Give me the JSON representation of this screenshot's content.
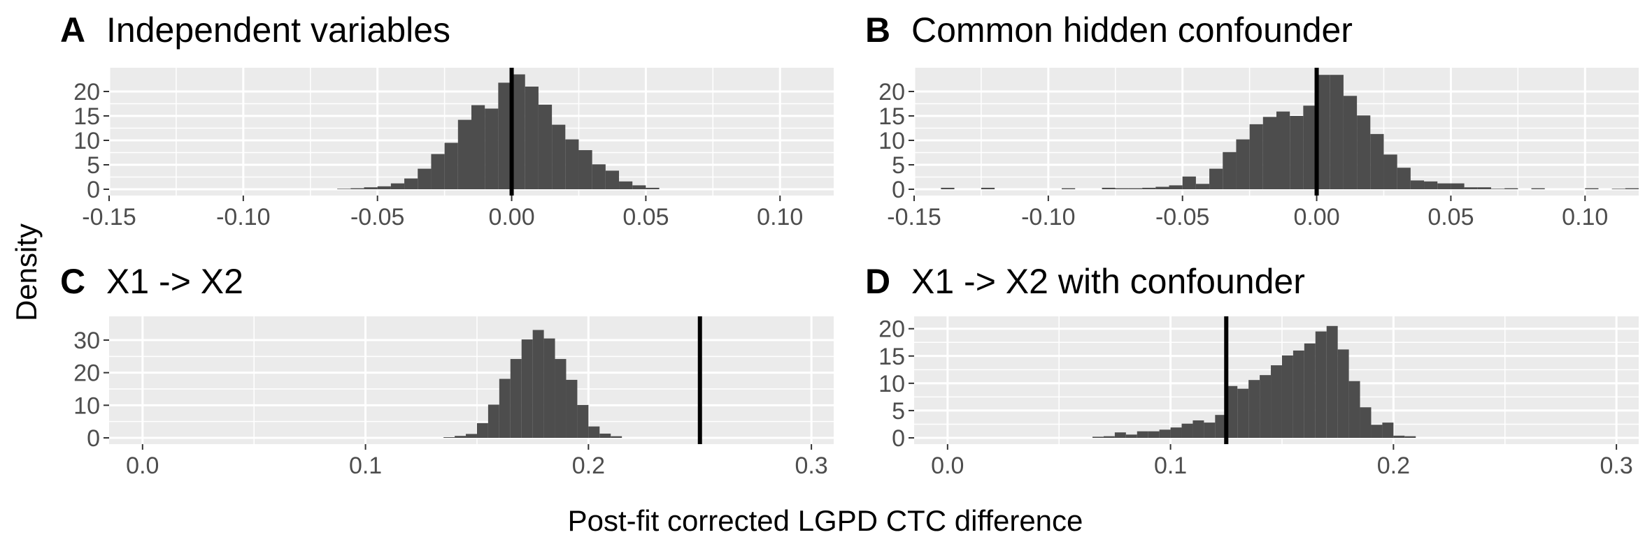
{
  "figure": {
    "xlabel": "Post-fit corrected LGPD CTC difference",
    "ylabel": "Density"
  },
  "colors": {
    "panel_background": "#ebebeb",
    "grid_line": "#ffffff",
    "bar_fill": "#4d4d4d",
    "reference_line": "#000000",
    "tick_text": "#4d4d4d"
  },
  "chart_data": [
    {
      "type": "bar",
      "letter": "A",
      "title": "Independent variables",
      "bin_width": 0.005,
      "xlim": [
        -0.15,
        0.12
      ],
      "ylim": [
        0,
        24
      ],
      "x_ticks": [
        -0.15,
        -0.1,
        -0.05,
        0.0,
        0.05,
        0.1
      ],
      "x_tick_labels": [
        "-0.15",
        "-0.10",
        "-0.05",
        "0.00",
        "0.05",
        "0.10"
      ],
      "y_ticks": [
        0,
        5,
        10,
        15,
        20
      ],
      "y_tick_labels": [
        "0",
        "5",
        "10",
        "15",
        "20"
      ],
      "reference_line_x": 0.0,
      "bins_start": [
        -0.065,
        -0.06,
        -0.055,
        -0.05,
        -0.045,
        -0.04,
        -0.035,
        -0.03,
        -0.025,
        -0.02,
        -0.015,
        -0.01,
        -0.005,
        0.0,
        0.005,
        0.01,
        0.015,
        0.02,
        0.025,
        0.03,
        0.035,
        0.04,
        0.045,
        0.05
      ],
      "values": [
        0.1,
        0.2,
        0.4,
        0.6,
        1.2,
        2.2,
        4.2,
        7.2,
        9.5,
        14.2,
        17.2,
        16.5,
        21.8,
        23.5,
        21.0,
        17.3,
        13.2,
        10.2,
        8.0,
        5.1,
        3.8,
        1.6,
        0.8,
        0.3
      ]
    },
    {
      "type": "bar",
      "letter": "B",
      "title": "Common hidden confounder",
      "bin_width": 0.005,
      "xlim": [
        -0.15,
        0.12
      ],
      "ylim": [
        0,
        24
      ],
      "x_ticks": [
        -0.15,
        -0.1,
        -0.05,
        0.0,
        0.05,
        0.1
      ],
      "x_tick_labels": [
        "-0.15",
        "-0.10",
        "-0.05",
        "0.00",
        "0.05",
        "0.10"
      ],
      "y_ticks": [
        0,
        5,
        10,
        15,
        20
      ],
      "y_tick_labels": [
        "0",
        "5",
        "10",
        "15",
        "20"
      ],
      "reference_line_x": 0.0,
      "bins_start": [
        -0.14,
        -0.125,
        -0.095,
        -0.08,
        -0.075,
        -0.07,
        -0.065,
        -0.06,
        -0.055,
        -0.05,
        -0.045,
        -0.04,
        -0.035,
        -0.03,
        -0.025,
        -0.02,
        -0.015,
        -0.01,
        -0.005,
        0.0,
        0.005,
        0.01,
        0.015,
        0.02,
        0.025,
        0.03,
        0.035,
        0.04,
        0.045,
        0.05,
        0.055,
        0.06,
        0.065,
        0.07,
        0.08,
        0.1,
        0.11,
        0.115
      ],
      "values": [
        0.3,
        0.3,
        0.2,
        0.3,
        0.2,
        0.2,
        0.3,
        0.5,
        0.8,
        2.6,
        1.1,
        4.2,
        7.6,
        10.2,
        13.3,
        14.8,
        15.9,
        15.0,
        17.1,
        23.4,
        23.4,
        19.1,
        15.1,
        11.3,
        7.1,
        4.4,
        1.8,
        1.6,
        1.2,
        1.2,
        0.4,
        0.4,
        0.1,
        0.2,
        0.2,
        0.2,
        0.1,
        0.2
      ]
    },
    {
      "type": "bar",
      "letter": "C",
      "title": "X1 -> X2",
      "bin_width": 0.005,
      "xlim": [
        -0.015,
        0.31
      ],
      "ylim": [
        0,
        36
      ],
      "x_ticks": [
        0.0,
        0.1,
        0.2,
        0.3
      ],
      "x_tick_labels": [
        "0.0",
        "0.1",
        "0.2",
        "0.3"
      ],
      "y_ticks": [
        0,
        10,
        20,
        30
      ],
      "y_tick_labels": [
        "0",
        "10",
        "20",
        "30"
      ],
      "reference_line_x": 0.25,
      "bins_start": [
        0.135,
        0.14,
        0.145,
        0.15,
        0.155,
        0.16,
        0.165,
        0.17,
        0.175,
        0.18,
        0.185,
        0.19,
        0.195,
        0.2,
        0.205,
        0.21
      ],
      "values": [
        0.2,
        0.6,
        1.2,
        4.5,
        10.2,
        18.1,
        24.2,
        30.2,
        33.1,
        30.5,
        24.2,
        17.8,
        10.1,
        3.5,
        1.3,
        0.5
      ]
    },
    {
      "type": "bar",
      "letter": "D",
      "title": "X1 -> X2 with confounder",
      "bin_width": 0.005,
      "xlim": [
        -0.015,
        0.31
      ],
      "ylim": [
        0,
        21.5
      ],
      "x_ticks": [
        0.0,
        0.1,
        0.2,
        0.3
      ],
      "x_tick_labels": [
        "0.0",
        "0.1",
        "0.2",
        "0.3"
      ],
      "y_ticks": [
        0,
        5,
        10,
        15,
        20
      ],
      "y_tick_labels": [
        "0",
        "5",
        "10",
        "15",
        "20"
      ],
      "reference_line_x": 0.125,
      "bins_start": [
        0.065,
        0.07,
        0.075,
        0.08,
        0.085,
        0.09,
        0.095,
        0.1,
        0.105,
        0.11,
        0.115,
        0.12,
        0.125,
        0.13,
        0.135,
        0.14,
        0.145,
        0.15,
        0.155,
        0.16,
        0.165,
        0.17,
        0.175,
        0.18,
        0.185,
        0.19,
        0.195,
        0.2,
        0.205
      ],
      "values": [
        0.2,
        0.3,
        1.0,
        0.6,
        1.2,
        1.2,
        1.5,
        1.9,
        2.6,
        3.2,
        2.8,
        4.2,
        9.5,
        9.0,
        10.6,
        11.5,
        13.3,
        15.1,
        16.0,
        17.3,
        19.5,
        20.5,
        16.2,
        10.4,
        5.6,
        2.4,
        2.8,
        0.4,
        0.3
      ]
    }
  ]
}
